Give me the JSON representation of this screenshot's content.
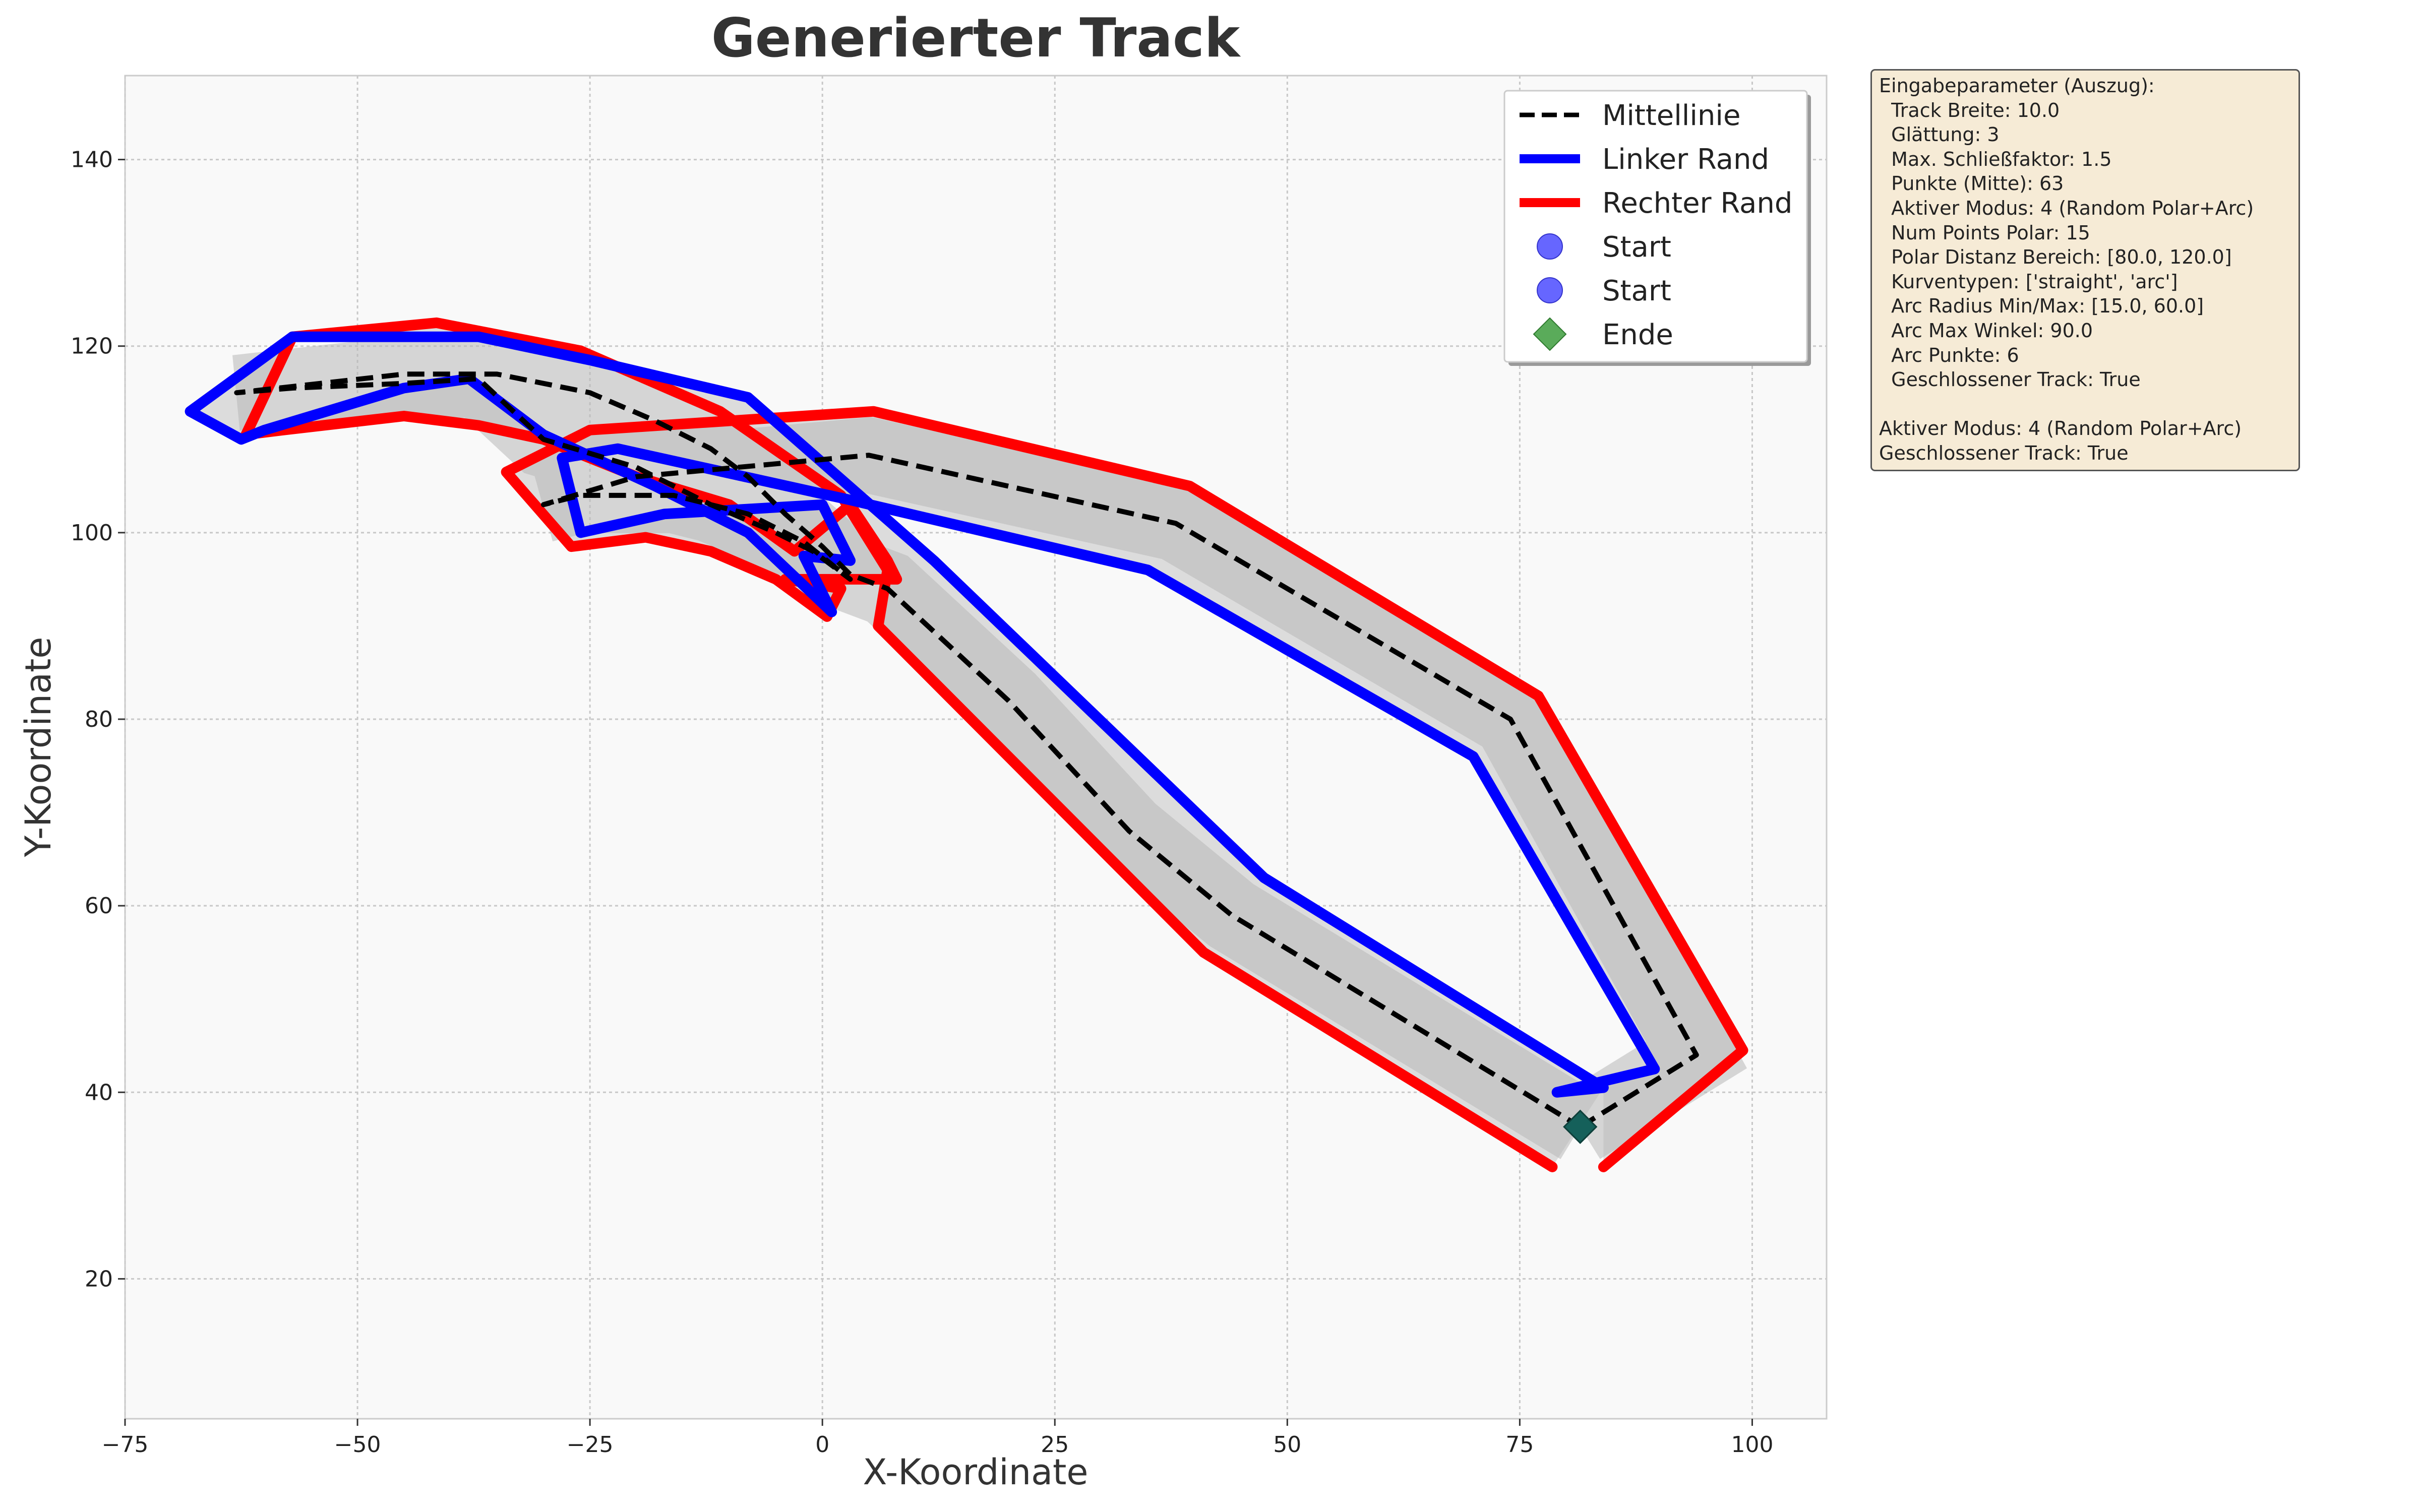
{
  "chart_data": {
    "type": "line",
    "title": "Generierter Track",
    "xlabel": "X-Koordinate",
    "ylabel": "Y-Koordinate",
    "xlim": [
      -75,
      108
    ],
    "ylim": [
      5,
      149
    ],
    "xticks": [
      -75,
      -50,
      -25,
      0,
      25,
      50,
      75,
      100
    ],
    "yticks": [
      20,
      40,
      60,
      80,
      100,
      120,
      140
    ],
    "grid": true,
    "legend_position": "top-right",
    "series": [
      {
        "name": "Mittellinie",
        "color": "#000000",
        "style": "dashed",
        "points": [
          [
            81.5,
            36.3
          ],
          [
            94,
            44
          ],
          [
            74,
            80
          ],
          [
            38,
            101
          ],
          [
            5,
            108.3
          ],
          [
            -20,
            106
          ],
          [
            -30,
            103
          ],
          [
            -26,
            104
          ],
          [
            -16,
            104
          ],
          [
            -8,
            102
          ],
          [
            -2,
            99
          ],
          [
            3,
            95
          ],
          [
            -1,
            98
          ],
          [
            -5,
            100
          ],
          [
            -12,
            103
          ],
          [
            -20,
            107
          ],
          [
            -30,
            110
          ],
          [
            -37,
            116.5
          ],
          [
            -45,
            116
          ],
          [
            -57,
            115.5
          ],
          [
            -63,
            115
          ],
          [
            -45,
            117
          ],
          [
            -35,
            117
          ],
          [
            -25,
            115
          ],
          [
            -18,
            112
          ],
          [
            -12,
            109
          ],
          [
            -8,
            106
          ],
          [
            -4,
            102
          ],
          [
            0,
            98.5
          ],
          [
            3,
            95.5
          ],
          [
            7,
            94
          ],
          [
            20,
            82
          ],
          [
            33,
            68
          ],
          [
            44,
            59
          ],
          [
            81.5,
            36.3
          ]
        ]
      },
      {
        "name": "Linker Rand",
        "color": "#0000ff",
        "style": "solid",
        "points": [
          [
            84,
            40.5
          ],
          [
            79,
            40
          ],
          [
            89.5,
            42.5
          ],
          [
            70,
            76
          ],
          [
            35,
            96
          ],
          [
            3,
            103.5
          ],
          [
            -22,
            109
          ],
          [
            -28,
            108
          ],
          [
            -26,
            100
          ],
          [
            -17,
            102
          ],
          [
            0,
            103
          ],
          [
            3,
            97
          ],
          [
            -2,
            97.5
          ],
          [
            1,
            91.5
          ],
          [
            -8,
            100
          ],
          [
            -18,
            105
          ],
          [
            -30,
            110.5
          ],
          [
            -38,
            116.5
          ],
          [
            -45,
            115.5
          ],
          [
            -60,
            111
          ],
          [
            -62.5,
            110
          ],
          [
            -68,
            113
          ],
          [
            -57,
            121
          ],
          [
            -37,
            121
          ],
          [
            -25,
            118.5
          ],
          [
            -8,
            114.5
          ],
          [
            12,
            97
          ],
          [
            47.5,
            63
          ],
          [
            84,
            40.5
          ]
        ]
      },
      {
        "name": "Rechter Rand",
        "color": "#ff0000",
        "style": "solid",
        "points": [
          [
            84,
            32
          ],
          [
            99,
            44.5
          ],
          [
            77,
            82.5
          ],
          [
            39.5,
            105
          ],
          [
            5.5,
            113
          ],
          [
            -25,
            111
          ],
          [
            -34,
            106.5
          ],
          [
            -27,
            98.5
          ],
          [
            -19,
            99.5
          ],
          [
            -12,
            98
          ],
          [
            -5,
            95
          ],
          [
            0.5,
            91
          ],
          [
            2,
            94
          ],
          [
            -4,
            95
          ],
          [
            8,
            95
          ],
          [
            7,
            97
          ],
          [
            3,
            103
          ],
          [
            -3,
            98
          ],
          [
            -10,
            103
          ],
          [
            -20,
            106
          ],
          [
            -30,
            110
          ],
          [
            -37,
            111.5
          ],
          [
            -45,
            112.5
          ],
          [
            -58,
            111
          ],
          [
            -62,
            110.5
          ],
          [
            -57,
            121
          ],
          [
            -41.5,
            122.5
          ],
          [
            -26,
            119.5
          ],
          [
            -11,
            113
          ],
          [
            2,
            104
          ],
          [
            7,
            96
          ],
          [
            6,
            90
          ],
          [
            41,
            55
          ],
          [
            78.5,
            32
          ]
        ]
      }
    ],
    "start_markers": [
      {
        "name": "Start",
        "color": "#6666ff",
        "marker": "circle"
      },
      {
        "name": "Start",
        "color": "#6666ff",
        "marker": "circle"
      }
    ],
    "end_marker": {
      "name": "Ende",
      "color": "#5aab5a",
      "marker": "diamond",
      "point": [
        81.5,
        36.3
      ]
    },
    "track_shading": {
      "width": 10.0,
      "light": "#dcdcdc",
      "dark": "#b8b8b8"
    },
    "legend": [
      {
        "label": "Mittellinie",
        "kind": "line",
        "color": "#000000",
        "dash": true
      },
      {
        "label": "Linker Rand",
        "kind": "line",
        "color": "#0000ff",
        "dash": false
      },
      {
        "label": "Rechter Rand",
        "kind": "line",
        "color": "#ff0000",
        "dash": false
      },
      {
        "label": "Start",
        "kind": "circle",
        "color": "#6666ff"
      },
      {
        "label": "Start",
        "kind": "circle",
        "color": "#6666ff"
      },
      {
        "label": "Ende",
        "kind": "diamond",
        "color": "#5aab5a"
      }
    ]
  },
  "params": {
    "lines": [
      "Eingabeparameter (Auszug):",
      "  Track Breite: 10.0",
      "  Glättung: 3",
      "  Max. Schließfaktor: 1.5",
      "  Punkte (Mitte): 63",
      "  Aktiver Modus: 4 (Random Polar+Arc)",
      "  Num Points Polar: 15",
      "  Polar Distanz Bereich: [80.0, 120.0]",
      "  Kurventypen: ['straight', 'arc']",
      "  Arc Radius Min/Max: [15.0, 60.0]",
      "  Arc Max Winkel: 90.0",
      "  Arc Punkte: 6",
      "  Geschlossener Track: True",
      "",
      "Aktiver Modus: 4 (Random Polar+Arc)",
      "Geschlossener Track: True"
    ]
  }
}
